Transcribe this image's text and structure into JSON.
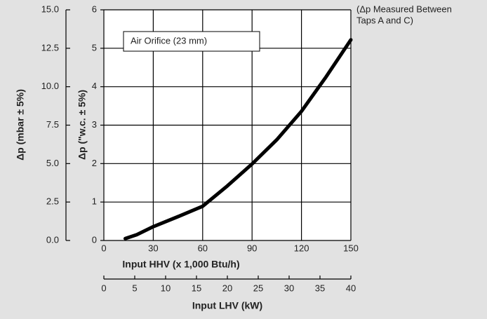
{
  "chart_data": {
    "type": "line",
    "x": [
      13,
      20,
      30,
      45,
      60,
      75,
      90,
      105,
      120,
      135,
      150
    ],
    "values": [
      0.05,
      0.15,
      0.36,
      0.62,
      0.89,
      1.42,
      1.99,
      2.62,
      3.36,
      4.26,
      5.22
    ],
    "color": "#000000",
    "xlim": [
      0,
      150
    ],
    "xticks": [
      0,
      30,
      60,
      90,
      120,
      150
    ],
    "ylim": [
      0,
      6
    ],
    "yticks": [
      0,
      1,
      2,
      3,
      4,
      5,
      6
    ],
    "y2lim": [
      0,
      15
    ],
    "y2ticks": [
      {
        "value": 0,
        "label": "0.0"
      },
      2.5,
      {
        "value": 5,
        "label": "5.0"
      },
      7.5,
      {
        "value": 10,
        "label": "10.0"
      },
      12.5,
      {
        "value": 15,
        "label": "15.0"
      }
    ],
    "x2lim": [
      0,
      40
    ],
    "x2ticks": [
      0,
      5,
      10,
      15,
      20,
      25,
      30,
      35,
      40
    ],
    "xlabel": "Input HHV (x 1,000 Btu/h)",
    "x2label": "Input LHV (kW)",
    "ylabel": "Δp (\"w.c. ± 5%)",
    "y2label": "Δp (mbar ± 5%)",
    "annotation": "Air Orifice (23 mm)",
    "note": [
      "(Δp Measured Between",
      "Taps A and C)"
    ],
    "grid": true
  }
}
